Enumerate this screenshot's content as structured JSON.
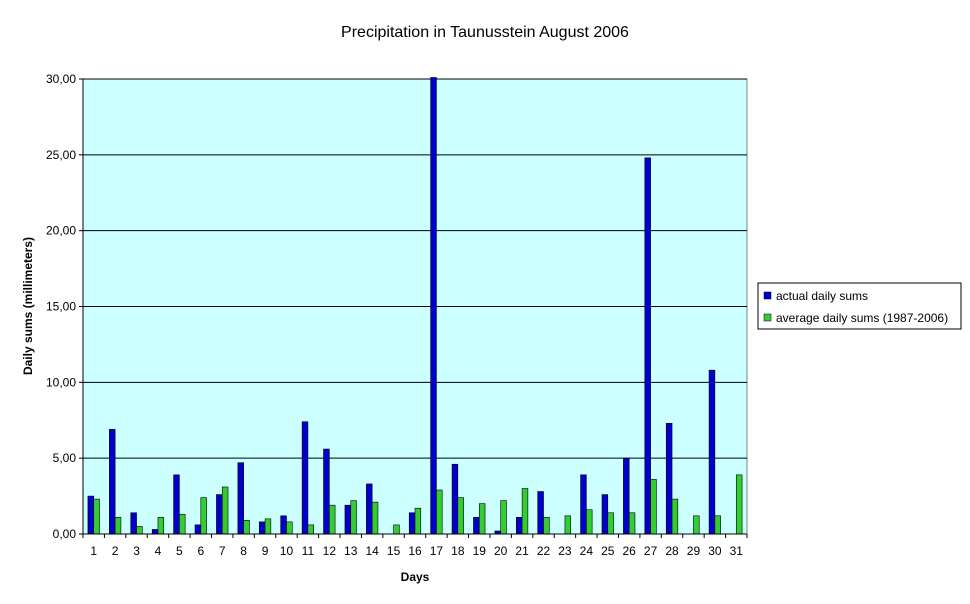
{
  "chart_data": {
    "type": "bar",
    "title": "Precipitation in Taunusstein  August  2006",
    "xlabel": "Days",
    "ylabel": "Daily sums  (millimeters)",
    "ylim": [
      0,
      30
    ],
    "y_ticks": [
      0,
      5,
      10,
      15,
      20,
      25,
      30
    ],
    "y_tick_labels": [
      "0,00",
      "5,00",
      "10,00",
      "15,00",
      "20,00",
      "25,00",
      "30,00"
    ],
    "grid": true,
    "legend_position": "right",
    "plot_background": "#ccffff",
    "categories": [
      "1",
      "2",
      "3",
      "4",
      "5",
      "6",
      "7",
      "8",
      "9",
      "10",
      "11",
      "12",
      "13",
      "14",
      "15",
      "16",
      "17",
      "18",
      "19",
      "20",
      "21",
      "22",
      "23",
      "24",
      "25",
      "26",
      "27",
      "28",
      "29",
      "30",
      "31"
    ],
    "series": [
      {
        "name": "actual daily sums",
        "color": "#0000cc",
        "values": [
          2.5,
          6.9,
          1.4,
          0.3,
          3.9,
          0.6,
          2.6,
          4.7,
          0.8,
          1.2,
          7.4,
          5.6,
          1.9,
          3.3,
          0.0,
          1.4,
          30.1,
          4.6,
          1.1,
          0.2,
          1.1,
          2.8,
          0.0,
          3.9,
          2.6,
          5.0,
          24.8,
          7.3,
          0.0,
          10.8,
          0.0
        ]
      },
      {
        "name": "average daily sums (1987-2006)",
        "color": "#33cc33",
        "values": [
          2.3,
          1.1,
          0.5,
          1.1,
          1.3,
          2.4,
          3.1,
          0.9,
          1.0,
          0.8,
          0.6,
          1.9,
          2.2,
          2.1,
          0.6,
          1.7,
          2.9,
          2.4,
          2.0,
          2.2,
          3.0,
          1.1,
          1.2,
          1.6,
          1.4,
          1.4,
          3.6,
          2.3,
          1.2,
          1.2,
          3.9
        ]
      }
    ]
  }
}
